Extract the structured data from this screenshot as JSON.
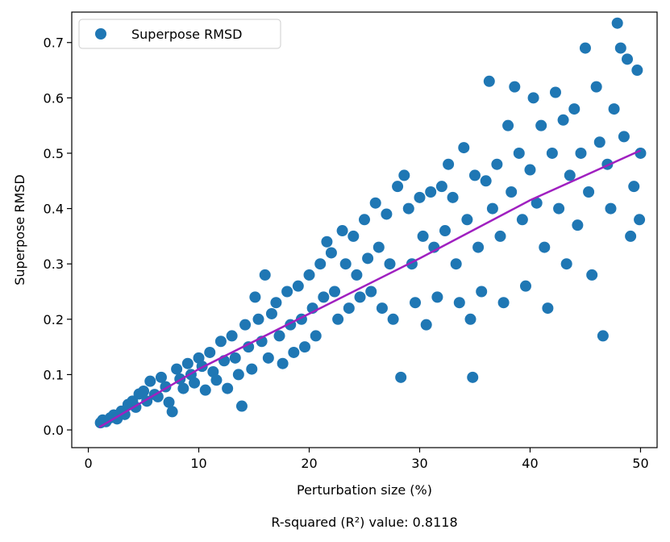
{
  "chart_data": {
    "type": "scatter",
    "xlabel": "Perturbation size (%)",
    "ylabel": "Superpose RMSD",
    "xlim": [
      -1.5,
      51.5
    ],
    "ylim": [
      -0.032,
      0.755
    ],
    "xticks": [
      0,
      10,
      20,
      30,
      40,
      50
    ],
    "yticks": [
      0.0,
      0.1,
      0.2,
      0.3,
      0.4,
      0.5,
      0.6,
      0.7
    ],
    "xtick_labels": [
      "0",
      "10",
      "20",
      "30",
      "40",
      "50"
    ],
    "ytick_labels": [
      "0.0",
      "0.1",
      "0.2",
      "0.3",
      "0.4",
      "0.5",
      "0.6",
      "0.7"
    ],
    "legend": {
      "label": "Superpose RMSD",
      "placement": "top-left"
    },
    "annotation": "R-squared (R²) value: 0.8118",
    "colors": {
      "points": "#1f77b4",
      "fit": "#a020c0",
      "frame": "#000000"
    },
    "fit_line": {
      "name": "fit",
      "points": [
        [
          1,
          0.005
        ],
        [
          10,
          0.11
        ],
        [
          20,
          0.21
        ],
        [
          30,
          0.31
        ],
        [
          40,
          0.415
        ],
        [
          50,
          0.505
        ]
      ]
    },
    "series": [
      {
        "name": "Superpose RMSD",
        "points": [
          [
            1.1,
            0.013
          ],
          [
            1.3,
            0.018
          ],
          [
            1.6,
            0.015
          ],
          [
            2.0,
            0.022
          ],
          [
            2.3,
            0.027
          ],
          [
            2.6,
            0.02
          ],
          [
            3.0,
            0.034
          ],
          [
            3.3,
            0.028
          ],
          [
            3.6,
            0.046
          ],
          [
            4.0,
            0.052
          ],
          [
            4.3,
            0.041
          ],
          [
            4.6,
            0.065
          ],
          [
            5.0,
            0.07
          ],
          [
            5.3,
            0.052
          ],
          [
            5.6,
            0.088
          ],
          [
            6.0,
            0.064
          ],
          [
            6.3,
            0.06
          ],
          [
            6.6,
            0.095
          ],
          [
            7.0,
            0.078
          ],
          [
            7.3,
            0.05
          ],
          [
            7.6,
            0.033
          ],
          [
            8.0,
            0.11
          ],
          [
            8.3,
            0.092
          ],
          [
            8.6,
            0.075
          ],
          [
            9.0,
            0.12
          ],
          [
            9.3,
            0.1
          ],
          [
            9.6,
            0.085
          ],
          [
            10.0,
            0.13
          ],
          [
            10.3,
            0.115
          ],
          [
            10.6,
            0.072
          ],
          [
            11.0,
            0.14
          ],
          [
            11.3,
            0.105
          ],
          [
            11.6,
            0.09
          ],
          [
            12.0,
            0.16
          ],
          [
            12.3,
            0.125
          ],
          [
            12.6,
            0.075
          ],
          [
            13.0,
            0.17
          ],
          [
            13.3,
            0.13
          ],
          [
            13.6,
            0.1
          ],
          [
            13.9,
            0.043
          ],
          [
            14.2,
            0.19
          ],
          [
            14.5,
            0.15
          ],
          [
            14.8,
            0.11
          ],
          [
            15.1,
            0.24
          ],
          [
            15.4,
            0.2
          ],
          [
            15.7,
            0.16
          ],
          [
            16.0,
            0.28
          ],
          [
            16.3,
            0.13
          ],
          [
            16.6,
            0.21
          ],
          [
            17.0,
            0.23
          ],
          [
            17.3,
            0.17
          ],
          [
            17.6,
            0.12
          ],
          [
            18.0,
            0.25
          ],
          [
            18.3,
            0.19
          ],
          [
            18.6,
            0.14
          ],
          [
            19.0,
            0.26
          ],
          [
            19.3,
            0.2
          ],
          [
            19.6,
            0.15
          ],
          [
            20.0,
            0.28
          ],
          [
            20.3,
            0.22
          ],
          [
            20.6,
            0.17
          ],
          [
            21.0,
            0.3
          ],
          [
            21.3,
            0.24
          ],
          [
            21.6,
            0.34
          ],
          [
            22.0,
            0.32
          ],
          [
            22.3,
            0.25
          ],
          [
            22.6,
            0.2
          ],
          [
            23.0,
            0.36
          ],
          [
            23.3,
            0.3
          ],
          [
            23.6,
            0.22
          ],
          [
            24.0,
            0.35
          ],
          [
            24.3,
            0.28
          ],
          [
            24.6,
            0.24
          ],
          [
            25.0,
            0.38
          ],
          [
            25.3,
            0.31
          ],
          [
            25.6,
            0.25
          ],
          [
            26.0,
            0.41
          ],
          [
            26.3,
            0.33
          ],
          [
            26.6,
            0.22
          ],
          [
            27.0,
            0.39
          ],
          [
            27.3,
            0.3
          ],
          [
            27.6,
            0.2
          ],
          [
            28.0,
            0.44
          ],
          [
            28.3,
            0.095
          ],
          [
            28.6,
            0.46
          ],
          [
            29.0,
            0.4
          ],
          [
            29.3,
            0.3
          ],
          [
            29.6,
            0.23
          ],
          [
            30.0,
            0.42
          ],
          [
            30.3,
            0.35
          ],
          [
            30.6,
            0.19
          ],
          [
            31.0,
            0.43
          ],
          [
            31.3,
            0.33
          ],
          [
            31.6,
            0.24
          ],
          [
            32.0,
            0.44
          ],
          [
            32.3,
            0.36
          ],
          [
            32.6,
            0.48
          ],
          [
            33.0,
            0.42
          ],
          [
            33.3,
            0.3
          ],
          [
            33.6,
            0.23
          ],
          [
            34.0,
            0.51
          ],
          [
            34.3,
            0.38
          ],
          [
            34.6,
            0.2
          ],
          [
            34.8,
            0.095
          ],
          [
            35.0,
            0.46
          ],
          [
            35.3,
            0.33
          ],
          [
            35.6,
            0.25
          ],
          [
            36.0,
            0.45
          ],
          [
            36.3,
            0.63
          ],
          [
            36.6,
            0.4
          ],
          [
            37.0,
            0.48
          ],
          [
            37.3,
            0.35
          ],
          [
            37.6,
            0.23
          ],
          [
            38.0,
            0.55
          ],
          [
            38.3,
            0.43
          ],
          [
            38.6,
            0.62
          ],
          [
            39.0,
            0.5
          ],
          [
            39.3,
            0.38
          ],
          [
            39.6,
            0.26
          ],
          [
            40.0,
            0.47
          ],
          [
            40.3,
            0.6
          ],
          [
            40.6,
            0.41
          ],
          [
            41.0,
            0.55
          ],
          [
            41.3,
            0.33
          ],
          [
            41.6,
            0.22
          ],
          [
            42.0,
            0.5
          ],
          [
            42.3,
            0.61
          ],
          [
            42.6,
            0.4
          ],
          [
            43.0,
            0.56
          ],
          [
            43.3,
            0.3
          ],
          [
            43.6,
            0.46
          ],
          [
            44.0,
            0.58
          ],
          [
            44.3,
            0.37
          ],
          [
            44.6,
            0.5
          ],
          [
            45.0,
            0.69
          ],
          [
            45.3,
            0.43
          ],
          [
            45.6,
            0.28
          ],
          [
            46.0,
            0.62
          ],
          [
            46.3,
            0.52
          ],
          [
            46.6,
            0.17
          ],
          [
            47.0,
            0.48
          ],
          [
            47.3,
            0.4
          ],
          [
            47.6,
            0.58
          ],
          [
            47.9,
            0.735
          ],
          [
            48.2,
            0.69
          ],
          [
            48.5,
            0.53
          ],
          [
            48.8,
            0.67
          ],
          [
            49.1,
            0.35
          ],
          [
            49.4,
            0.44
          ],
          [
            49.7,
            0.65
          ],
          [
            50.0,
            0.5
          ],
          [
            49.9,
            0.38
          ]
        ]
      }
    ]
  }
}
